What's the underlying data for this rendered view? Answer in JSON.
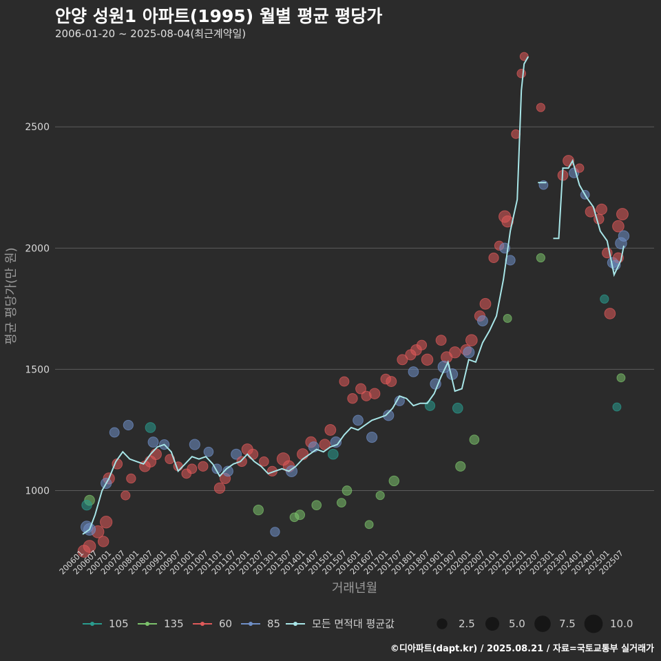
{
  "header": {
    "title": "안양 성원1 아파트(1995) 월별 평균 평당가",
    "subtitle": "2006-01-20 ~ 2025-08-04(최근계약일)"
  },
  "footer": {
    "credit": "©디아파트(dapt.kr) / 2025.08.21 / 자료=국토교통부 실거래가"
  },
  "chart_data": {
    "type": "scatter",
    "xlabel": "거래년월",
    "ylabel": "평균 평당가(만 원)",
    "ylim": [
      780,
      2830
    ],
    "yticks": [
      1000,
      1500,
      2000,
      2500
    ],
    "xlim": [
      2006.0,
      2025.75
    ],
    "xtick_labels": [
      "200601",
      "200607",
      "200701",
      "200707",
      "200801",
      "200807",
      "200901",
      "200907",
      "201001",
      "201007",
      "201101",
      "201107",
      "201201",
      "201207",
      "201301",
      "201307",
      "201401",
      "201407",
      "201501",
      "201507",
      "201601",
      "201607",
      "201701",
      "201707",
      "201801",
      "201807",
      "201901",
      "201907",
      "202001",
      "202007",
      "202101",
      "202107",
      "202201",
      "202207",
      "202301",
      "202307",
      "202401",
      "202407",
      "202501",
      "202507"
    ],
    "colors": {
      "105": "#2a9d8f",
      "135": "#7cc26b",
      "60": "#e05a5a",
      "85": "#6f8fc7",
      "avg": "#a8e6e8"
    },
    "legend": {
      "series": [
        "105",
        "135",
        "60",
        "85",
        "모든 면적대 평균값"
      ],
      "sizes": [
        "2.5",
        "5.0",
        "7.5",
        "10.0"
      ]
    },
    "avg_line": [
      {
        "x": 2006.05,
        "y": 820
      },
      {
        "x": 2006.3,
        "y": 840
      },
      {
        "x": 2006.5,
        "y": 900
      },
      {
        "x": 2006.75,
        "y": 1000
      },
      {
        "x": 2007.0,
        "y": 1050
      },
      {
        "x": 2007.25,
        "y": 1120
      },
      {
        "x": 2007.5,
        "y": 1160
      },
      {
        "x": 2007.75,
        "y": 1130
      },
      {
        "x": 2008.0,
        "y": 1120
      },
      {
        "x": 2008.25,
        "y": 1110
      },
      {
        "x": 2008.5,
        "y": 1150
      },
      {
        "x": 2008.75,
        "y": 1180
      },
      {
        "x": 2009.0,
        "y": 1190
      },
      {
        "x": 2009.25,
        "y": 1160
      },
      {
        "x": 2009.5,
        "y": 1080
      },
      {
        "x": 2009.75,
        "y": 1110
      },
      {
        "x": 2010.0,
        "y": 1140
      },
      {
        "x": 2010.25,
        "y": 1130
      },
      {
        "x": 2010.5,
        "y": 1140
      },
      {
        "x": 2010.75,
        "y": 1110
      },
      {
        "x": 2011.0,
        "y": 1060
      },
      {
        "x": 2011.25,
        "y": 1090
      },
      {
        "x": 2011.5,
        "y": 1110
      },
      {
        "x": 2011.75,
        "y": 1120
      },
      {
        "x": 2012.0,
        "y": 1150
      },
      {
        "x": 2012.25,
        "y": 1120
      },
      {
        "x": 2012.5,
        "y": 1100
      },
      {
        "x": 2012.75,
        "y": 1070
      },
      {
        "x": 2013.0,
        "y": 1080
      },
      {
        "x": 2013.25,
        "y": 1090
      },
      {
        "x": 2013.5,
        "y": 1080
      },
      {
        "x": 2013.75,
        "y": 1100
      },
      {
        "x": 2014.0,
        "y": 1130
      },
      {
        "x": 2014.25,
        "y": 1150
      },
      {
        "x": 2014.5,
        "y": 1170
      },
      {
        "x": 2014.75,
        "y": 1160
      },
      {
        "x": 2015.0,
        "y": 1180
      },
      {
        "x": 2015.25,
        "y": 1190
      },
      {
        "x": 2015.5,
        "y": 1230
      },
      {
        "x": 2015.75,
        "y": 1260
      },
      {
        "x": 2016.0,
        "y": 1250
      },
      {
        "x": 2016.25,
        "y": 1270
      },
      {
        "x": 2016.5,
        "y": 1290
      },
      {
        "x": 2016.75,
        "y": 1300
      },
      {
        "x": 2017.0,
        "y": 1310
      },
      {
        "x": 2017.25,
        "y": 1340
      },
      {
        "x": 2017.5,
        "y": 1390
      },
      {
        "x": 2017.75,
        "y": 1380
      },
      {
        "x": 2018.0,
        "y": 1350
      },
      {
        "x": 2018.25,
        "y": 1360
      },
      {
        "x": 2018.5,
        "y": 1360
      },
      {
        "x": 2018.75,
        "y": 1400
      },
      {
        "x": 2019.0,
        "y": 1470
      },
      {
        "x": 2019.25,
        "y": 1530
      },
      {
        "x": 2019.5,
        "y": 1410
      },
      {
        "x": 2019.75,
        "y": 1420
      },
      {
        "x": 2020.0,
        "y": 1540
      },
      {
        "x": 2020.25,
        "y": 1530
      },
      {
        "x": 2020.5,
        "y": 1610
      },
      {
        "x": 2020.75,
        "y": 1660
      },
      {
        "x": 2021.0,
        "y": 1720
      },
      {
        "x": 2021.25,
        "y": 1870
      },
      {
        "x": 2021.5,
        "y": 2070
      },
      {
        "x": 2021.75,
        "y": 2200
      },
      {
        "x": 2021.9,
        "y": 2650
      },
      {
        "x": 2022.0,
        "y": 2760
      },
      {
        "x": 2022.15,
        "y": 2790
      },
      {
        "x": 2022.25,
        "y": null
      },
      {
        "x": 2022.5,
        "y": 2270
      },
      {
        "x": 2022.8,
        "y": 2270
      },
      {
        "x": 2022.9,
        "y": null
      },
      {
        "x": 2023.05,
        "y": 2040
      },
      {
        "x": 2023.25,
        "y": 2040
      },
      {
        "x": 2023.4,
        "y": 2330
      },
      {
        "x": 2023.6,
        "y": 2330
      },
      {
        "x": 2023.75,
        "y": 2360
      },
      {
        "x": 2024.0,
        "y": 2260
      },
      {
        "x": 2024.25,
        "y": 2210
      },
      {
        "x": 2024.5,
        "y": 2170
      },
      {
        "x": 2024.75,
        "y": 2070
      },
      {
        "x": 2025.0,
        "y": 2030
      },
      {
        "x": 2025.25,
        "y": 1890
      },
      {
        "x": 2025.5,
        "y": 1950
      },
      {
        "x": 2025.6,
        "y": 2010
      }
    ],
    "points": [
      {
        "s": "60",
        "x": 2006.1,
        "y": 750,
        "v": 3.6
      },
      {
        "s": "60",
        "x": 2006.3,
        "y": 770,
        "v": 3.6
      },
      {
        "s": "60",
        "x": 2006.6,
        "y": 830,
        "v": 3.6
      },
      {
        "s": "60",
        "x": 2006.8,
        "y": 790,
        "v": 2.5
      },
      {
        "s": "60",
        "x": 2006.9,
        "y": 870,
        "v": 3.4
      },
      {
        "s": "85",
        "x": 2006.2,
        "y": 850,
        "v": 3.3
      },
      {
        "s": "85",
        "x": 2006.3,
        "y": 840,
        "v": 3.3
      },
      {
        "s": "135",
        "x": 2006.3,
        "y": 960,
        "v": 2.2
      },
      {
        "s": "105",
        "x": 2006.2,
        "y": 940,
        "v": 2.1
      },
      {
        "s": "60",
        "x": 2007.0,
        "y": 1050,
        "v": 2.9
      },
      {
        "s": "85",
        "x": 2006.9,
        "y": 1030,
        "v": 2.4
      },
      {
        "s": "60",
        "x": 2007.3,
        "y": 1110,
        "v": 2.2
      },
      {
        "s": "85",
        "x": 2007.2,
        "y": 1240,
        "v": 1.9
      },
      {
        "s": "85",
        "x": 2007.7,
        "y": 1270,
        "v": 2.0
      },
      {
        "s": "60",
        "x": 2007.8,
        "y": 1050,
        "v": 1.7
      },
      {
        "s": "60",
        "x": 2007.6,
        "y": 980,
        "v": 1.6
      },
      {
        "s": "60",
        "x": 2008.3,
        "y": 1100,
        "v": 2.6
      },
      {
        "s": "60",
        "x": 2008.5,
        "y": 1120,
        "v": 2.9
      },
      {
        "s": "60",
        "x": 2008.7,
        "y": 1150,
        "v": 2.7
      },
      {
        "s": "105",
        "x": 2008.5,
        "y": 1260,
        "v": 2.2
      },
      {
        "s": "85",
        "x": 2008.6,
        "y": 1200,
        "v": 2.3
      },
      {
        "s": "85",
        "x": 2009.0,
        "y": 1190,
        "v": 2.0
      },
      {
        "s": "60",
        "x": 2009.2,
        "y": 1130,
        "v": 1.8
      },
      {
        "s": "60",
        "x": 2009.5,
        "y": 1100,
        "v": 1.6
      },
      {
        "s": "60",
        "x": 2009.8,
        "y": 1070,
        "v": 1.8
      },
      {
        "s": "60",
        "x": 2010.0,
        "y": 1090,
        "v": 1.9
      },
      {
        "s": "85",
        "x": 2010.1,
        "y": 1190,
        "v": 2.4
      },
      {
        "s": "60",
        "x": 2010.4,
        "y": 1100,
        "v": 2.0
      },
      {
        "s": "85",
        "x": 2010.6,
        "y": 1160,
        "v": 1.8
      },
      {
        "s": "85",
        "x": 2010.9,
        "y": 1090,
        "v": 1.9
      },
      {
        "s": "60",
        "x": 2011.0,
        "y": 1010,
        "v": 2.5
      },
      {
        "s": "60",
        "x": 2011.2,
        "y": 1050,
        "v": 2.4
      },
      {
        "s": "85",
        "x": 2011.3,
        "y": 1080,
        "v": 2.2
      },
      {
        "s": "85",
        "x": 2011.6,
        "y": 1150,
        "v": 2.3
      },
      {
        "s": "60",
        "x": 2011.8,
        "y": 1120,
        "v": 2.1
      },
      {
        "s": "60",
        "x": 2012.0,
        "y": 1170,
        "v": 2.8
      },
      {
        "s": "60",
        "x": 2012.2,
        "y": 1150,
        "v": 2.3
      },
      {
        "s": "135",
        "x": 2012.4,
        "y": 920,
        "v": 2.1
      },
      {
        "s": "60",
        "x": 2012.6,
        "y": 1120,
        "v": 1.8
      },
      {
        "s": "60",
        "x": 2012.9,
        "y": 1080,
        "v": 2.0
      },
      {
        "s": "85",
        "x": 2013.0,
        "y": 830,
        "v": 1.7
      },
      {
        "s": "60",
        "x": 2013.3,
        "y": 1130,
        "v": 3.9
      },
      {
        "s": "60",
        "x": 2013.5,
        "y": 1100,
        "v": 3.0
      },
      {
        "s": "85",
        "x": 2013.6,
        "y": 1080,
        "v": 2.8
      },
      {
        "s": "135",
        "x": 2013.7,
        "y": 890,
        "v": 1.5
      },
      {
        "s": "135",
        "x": 2013.9,
        "y": 900,
        "v": 1.9
      },
      {
        "s": "60",
        "x": 2014.0,
        "y": 1150,
        "v": 2.8
      },
      {
        "s": "60",
        "x": 2014.3,
        "y": 1200,
        "v": 2.6
      },
      {
        "s": "85",
        "x": 2014.4,
        "y": 1180,
        "v": 2.3
      },
      {
        "s": "135",
        "x": 2014.5,
        "y": 940,
        "v": 1.8
      },
      {
        "s": "60",
        "x": 2014.8,
        "y": 1190,
        "v": 2.5
      },
      {
        "s": "60",
        "x": 2015.0,
        "y": 1250,
        "v": 2.7
      },
      {
        "s": "105",
        "x": 2015.1,
        "y": 1150,
        "v": 2.2
      },
      {
        "s": "85",
        "x": 2015.2,
        "y": 1200,
        "v": 2.5
      },
      {
        "s": "135",
        "x": 2015.4,
        "y": 950,
        "v": 1.5
      },
      {
        "s": "60",
        "x": 2015.5,
        "y": 1450,
        "v": 1.9
      },
      {
        "s": "135",
        "x": 2015.6,
        "y": 1000,
        "v": 1.8
      },
      {
        "s": "60",
        "x": 2015.8,
        "y": 1380,
        "v": 2.1
      },
      {
        "s": "85",
        "x": 2016.0,
        "y": 1290,
        "v": 2.2
      },
      {
        "s": "60",
        "x": 2016.1,
        "y": 1420,
        "v": 2.3
      },
      {
        "s": "60",
        "x": 2016.3,
        "y": 1390,
        "v": 2.0
      },
      {
        "s": "85",
        "x": 2016.5,
        "y": 1220,
        "v": 2.4
      },
      {
        "s": "60",
        "x": 2016.6,
        "y": 1400,
        "v": 2.5
      },
      {
        "s": "135",
        "x": 2016.4,
        "y": 860,
        "v": 1.2
      },
      {
        "s": "135",
        "x": 2016.8,
        "y": 980,
        "v": 1.3
      },
      {
        "s": "60",
        "x": 2017.0,
        "y": 1460,
        "v": 2.1
      },
      {
        "s": "60",
        "x": 2017.2,
        "y": 1450,
        "v": 2.3
      },
      {
        "s": "85",
        "x": 2017.1,
        "y": 1310,
        "v": 2.4
      },
      {
        "s": "135",
        "x": 2017.3,
        "y": 1040,
        "v": 2.1
      },
      {
        "s": "60",
        "x": 2017.6,
        "y": 1540,
        "v": 2.3
      },
      {
        "s": "85",
        "x": 2017.5,
        "y": 1370,
        "v": 2.0
      },
      {
        "s": "60",
        "x": 2017.9,
        "y": 1560,
        "v": 2.4
      },
      {
        "s": "60",
        "x": 2018.1,
        "y": 1580,
        "v": 2.6
      },
      {
        "s": "85",
        "x": 2018.0,
        "y": 1490,
        "v": 2.2
      },
      {
        "s": "60",
        "x": 2018.3,
        "y": 1600,
        "v": 2.0
      },
      {
        "s": "60",
        "x": 2018.5,
        "y": 1540,
        "v": 3.0
      },
      {
        "s": "105",
        "x": 2018.6,
        "y": 1350,
        "v": 2.0
      },
      {
        "s": "85",
        "x": 2018.8,
        "y": 1440,
        "v": 2.5
      },
      {
        "s": "60",
        "x": 2019.0,
        "y": 1620,
        "v": 2.3
      },
      {
        "s": "60",
        "x": 2019.2,
        "y": 1550,
        "v": 2.8
      },
      {
        "s": "85",
        "x": 2019.1,
        "y": 1510,
        "v": 3.3
      },
      {
        "s": "60",
        "x": 2019.5,
        "y": 1570,
        "v": 2.9
      },
      {
        "s": "85",
        "x": 2019.4,
        "y": 1480,
        "v": 2.7
      },
      {
        "s": "105",
        "x": 2019.6,
        "y": 1340,
        "v": 2.2
      },
      {
        "s": "135",
        "x": 2019.7,
        "y": 1100,
        "v": 2.0
      },
      {
        "s": "60",
        "x": 2019.9,
        "y": 1580,
        "v": 2.5
      },
      {
        "s": "60",
        "x": 2020.1,
        "y": 1620,
        "v": 3.1
      },
      {
        "s": "85",
        "x": 2020.0,
        "y": 1570,
        "v": 2.8
      },
      {
        "s": "135",
        "x": 2020.2,
        "y": 1210,
        "v": 1.8
      },
      {
        "s": "60",
        "x": 2020.4,
        "y": 1720,
        "v": 2.4
      },
      {
        "s": "60",
        "x": 2020.6,
        "y": 1770,
        "v": 2.7
      },
      {
        "s": "85",
        "x": 2020.5,
        "y": 1700,
        "v": 2.3
      },
      {
        "s": "60",
        "x": 2020.9,
        "y": 1960,
        "v": 2.0
      },
      {
        "s": "60",
        "x": 2021.1,
        "y": 2010,
        "v": 1.7
      },
      {
        "s": "60",
        "x": 2021.3,
        "y": 2130,
        "v": 3.3
      },
      {
        "s": "60",
        "x": 2021.4,
        "y": 2110,
        "v": 3.0
      },
      {
        "s": "85",
        "x": 2021.3,
        "y": 2000,
        "v": 2.2
      },
      {
        "s": "85",
        "x": 2021.5,
        "y": 1950,
        "v": 2.0
      },
      {
        "s": "60",
        "x": 2021.7,
        "y": 2470,
        "v": 1.5
      },
      {
        "s": "60",
        "x": 2021.9,
        "y": 2720,
        "v": 1.4
      },
      {
        "s": "60",
        "x": 2022.0,
        "y": 2790,
        "v": 1.2
      },
      {
        "s": "135",
        "x": 2021.4,
        "y": 1710,
        "v": 1.2
      },
      {
        "s": "60",
        "x": 2022.6,
        "y": 2580,
        "v": 1.3
      },
      {
        "s": "135",
        "x": 2022.6,
        "y": 1960,
        "v": 1.3
      },
      {
        "s": "85",
        "x": 2022.7,
        "y": 2260,
        "v": 1.5
      },
      {
        "s": "60",
        "x": 2023.4,
        "y": 2300,
        "v": 2.2
      },
      {
        "s": "60",
        "x": 2023.6,
        "y": 2360,
        "v": 2.7
      },
      {
        "s": "85",
        "x": 2023.8,
        "y": 2310,
        "v": 2.0
      },
      {
        "s": "60",
        "x": 2024.0,
        "y": 2330,
        "v": 1.4
      },
      {
        "s": "85",
        "x": 2024.2,
        "y": 2220,
        "v": 1.5
      },
      {
        "s": "60",
        "x": 2024.4,
        "y": 2150,
        "v": 2.4
      },
      {
        "s": "60",
        "x": 2024.7,
        "y": 2120,
        "v": 2.1
      },
      {
        "s": "60",
        "x": 2024.8,
        "y": 2160,
        "v": 2.5
      },
      {
        "s": "105",
        "x": 2024.9,
        "y": 1790,
        "v": 1.3
      },
      {
        "s": "60",
        "x": 2025.0,
        "y": 1980,
        "v": 2.1
      },
      {
        "s": "60",
        "x": 2025.1,
        "y": 1730,
        "v": 2.6
      },
      {
        "s": "85",
        "x": 2025.2,
        "y": 1940,
        "v": 2.4
      },
      {
        "s": "60",
        "x": 2025.4,
        "y": 2090,
        "v": 3.1
      },
      {
        "s": "60",
        "x": 2025.55,
        "y": 2140,
        "v": 3.2
      },
      {
        "s": "85",
        "x": 2025.5,
        "y": 2020,
        "v": 3.0
      },
      {
        "s": "85",
        "x": 2025.6,
        "y": 2050,
        "v": 2.5
      },
      {
        "s": "135",
        "x": 2025.5,
        "y": 1465,
        "v": 1.2
      },
      {
        "s": "105",
        "x": 2025.35,
        "y": 1345,
        "v": 1.2
      },
      {
        "s": "60",
        "x": 2025.4,
        "y": 1960,
        "v": 2.3
      },
      {
        "s": "85",
        "x": 2025.3,
        "y": 1930,
        "v": 2.0
      }
    ]
  }
}
